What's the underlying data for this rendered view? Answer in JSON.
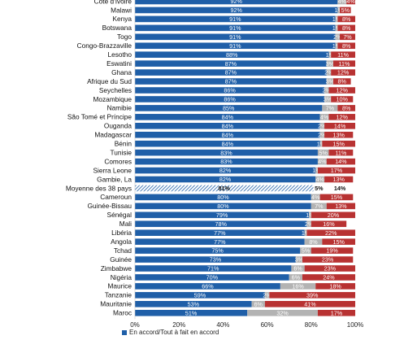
{
  "chart_data": {
    "type": "bar",
    "orientation": "horizontal",
    "stacked": true,
    "categories": [
      "Côte d'Ivoire",
      "Malawi",
      "Kenya",
      "Botswana",
      "Togo",
      "Congo-Brazzaville",
      "Lesotho",
      "Eswatini",
      "Ghana",
      "Afrique du Sud",
      "Seychelles",
      "Mozambique",
      "Namibie",
      "São Tomé et Príncipe",
      "Ouganda",
      "Madagascar",
      "Bénin",
      "Tunisie",
      "Comores",
      "Sierra Leone",
      "Gambie, La",
      "Moyenne des 38 pays",
      "Cameroun",
      "Guinée-Bissau",
      "Sénégal",
      "Mali",
      "Libéria",
      "Angola",
      "Tchad",
      "Guinée",
      "Zimbabwe",
      "Nigéria",
      "Maurice",
      "Tanzanie",
      "Mauritanie",
      "Maroc"
    ],
    "highlight_category": "Moyenne des 38 pays",
    "series": [
      {
        "name": "En accord/Tout à fait en accord",
        "color": "#1f5fa8",
        "values": [
          92,
          92,
          91,
          91,
          91,
          91,
          88,
          87,
          87,
          87,
          86,
          86,
          85,
          84,
          84,
          84,
          84,
          83,
          83,
          82,
          82,
          81,
          80,
          80,
          79,
          78,
          77,
          77,
          75,
          73,
          71,
          70,
          66,
          59,
          53,
          51
        ]
      },
      {
        "values": [
          4,
          1,
          1,
          1,
          2,
          1,
          1,
          3,
          2,
          3,
          2,
          3,
          7,
          4,
          2,
          2,
          1,
          5,
          4,
          1,
          4,
          5,
          4,
          7,
          1,
          2,
          1,
          8,
          5,
          3,
          6,
          6,
          16,
          2,
          6,
          32
        ]
      },
      {
        "values": [
          4,
          5,
          8,
          8,
          7,
          8,
          11,
          11,
          12,
          8,
          12,
          10,
          8,
          12,
          14,
          13,
          15,
          11,
          14,
          17,
          13,
          14,
          15,
          13,
          20,
          16,
          22,
          15,
          19,
          23,
          23,
          24,
          18,
          39,
          41,
          17
        ]
      }
    ],
    "labels_s1": [
      "92%",
      "92%",
      "91%",
      "91%",
      "91%",
      "91%",
      "88%",
      "87%",
      "87%",
      "87%",
      "86%",
      "86%",
      "85%",
      "84%",
      "84%",
      "84%",
      "84%",
      "83%",
      "83%",
      "82%",
      "82%",
      "81%",
      "80%",
      "80%",
      "79%",
      "78%",
      "77%",
      "77%",
      "75%",
      "73%",
      "71%",
      "70%",
      "66%",
      "59%",
      "53%",
      "51%"
    ],
    "labels_s2": [
      "4%",
      "1%",
      "1%",
      "1%",
      "2%",
      "1%",
      "1%",
      "3%",
      "2%",
      "3%",
      "2%",
      "3%",
      "7%",
      "4%",
      "2%",
      "2%",
      "1%",
      "5%",
      "4%",
      "1%",
      "4%",
      "5%",
      "4%",
      "7%",
      "1%",
      "2%",
      "1%",
      "8%",
      "5%",
      "3%",
      "6%",
      "6%",
      "16%",
      "2%",
      "6%",
      "32%"
    ],
    "labels_s3": [
      "4%",
      "5%",
      "8%",
      "8%",
      "7%",
      "8%",
      "11%",
      "11%",
      "12%",
      "8%",
      "12%",
      "10%",
      "8%",
      "12%",
      "14%",
      "13%",
      "15%",
      "11%",
      "14%",
      "17%",
      "13%",
      "14%",
      "15%",
      "13%",
      "20%",
      "16%",
      "22%",
      "15%",
      "19%",
      "23%",
      "23%",
      "24%",
      "18%",
      "39%",
      "41%",
      "17%"
    ],
    "colors": {
      "series1": "#1f5fa8",
      "series2": "#b3b3b3",
      "series3": "#b83232"
    },
    "xlim": [
      0,
      100
    ],
    "xticks": [
      "0%",
      "20%",
      "40%",
      "60%",
      "80%",
      "100%"
    ],
    "legend_label": "En accord/Tout à fait en accord"
  }
}
